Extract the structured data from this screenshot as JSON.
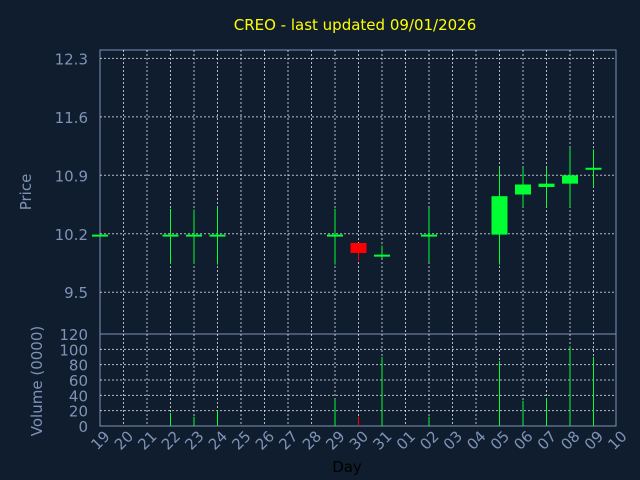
{
  "chart_data": {
    "type": "candlestick",
    "title": "CREO - last updated 09/01/2026",
    "xlabel": "Day",
    "price_panel": {
      "ylabel": "Price",
      "yticks": [
        "12.3",
        "11.6",
        "10.9",
        "10.2",
        "9.5"
      ],
      "ytick_values": [
        12.3,
        11.6,
        10.9,
        10.2,
        9.5
      ],
      "ylim": [
        9.0,
        12.4
      ]
    },
    "volume_panel": {
      "ylabel": "Volume (0000)",
      "yticks": [
        "120",
        "100",
        "80",
        "60",
        "40",
        "20",
        "0"
      ],
      "ytick_values": [
        120,
        100,
        80,
        60,
        40,
        20,
        0
      ],
      "ylim": [
        0,
        120
      ]
    },
    "x_ticks": [
      "19",
      "20",
      "21",
      "22",
      "23",
      "24",
      "25",
      "26",
      "27",
      "28",
      "29",
      "30",
      "31",
      "01",
      "02",
      "03",
      "04",
      "05",
      "06",
      "07",
      "08",
      "09",
      "10"
    ],
    "grid": true,
    "colors": {
      "up": "#00ff33",
      "down": "#ff0000",
      "background": "#0f1d2e",
      "grid": "#ffffff",
      "tick_text": "#7f93b5",
      "title": "#ffff00"
    },
    "candles": [
      {
        "day": "19",
        "open": 10.19,
        "high": 10.19,
        "low": 10.19,
        "close": 10.19,
        "volume": 0
      },
      {
        "day": "22",
        "open": 10.19,
        "high": 10.5,
        "low": 9.84,
        "close": 10.19,
        "volume": 17
      },
      {
        "day": "23",
        "open": 10.19,
        "high": 10.49,
        "low": 9.84,
        "close": 10.19,
        "volume": 12
      },
      {
        "day": "24",
        "open": 10.19,
        "high": 10.52,
        "low": 9.83,
        "close": 10.19,
        "volume": 20
      },
      {
        "day": "29",
        "open": 10.19,
        "high": 10.5,
        "low": 9.83,
        "close": 10.19,
        "volume": 35
      },
      {
        "day": "30",
        "open": 10.09,
        "high": 10.09,
        "low": 9.88,
        "close": 9.97,
        "volume": 12
      },
      {
        "day": "31",
        "open": 9.95,
        "high": 10.06,
        "low": 9.91,
        "close": 9.95,
        "volume": 90
      },
      {
        "day": "02",
        "open": 10.19,
        "high": 10.51,
        "low": 9.86,
        "close": 10.19,
        "volume": 12
      },
      {
        "day": "05",
        "open": 10.19,
        "high": 10.99,
        "low": 9.83,
        "close": 10.65,
        "volume": 85
      },
      {
        "day": "06",
        "open": 10.67,
        "high": 10.99,
        "low": 10.52,
        "close": 10.79,
        "volume": 33
      },
      {
        "day": "07",
        "open": 10.76,
        "high": 10.99,
        "low": 10.52,
        "close": 10.8,
        "volume": 36
      },
      {
        "day": "08",
        "open": 10.8,
        "high": 11.23,
        "low": 10.52,
        "close": 10.9,
        "volume": 104
      },
      {
        "day": "09",
        "open": 10.99,
        "high": 11.21,
        "low": 10.76,
        "close": 10.99,
        "volume": 90
      }
    ]
  }
}
